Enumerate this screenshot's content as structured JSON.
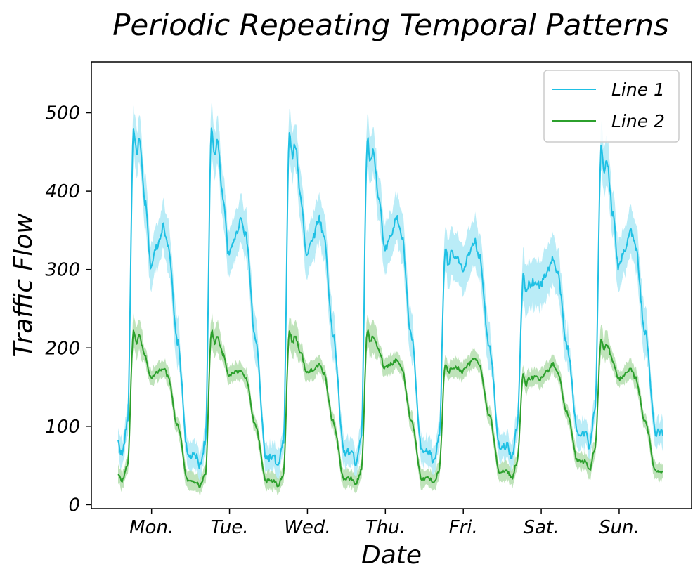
{
  "chart_data": {
    "type": "line",
    "title": "Periodic Repeating Temporal Patterns",
    "xlabel": "Date",
    "ylabel": "Traffic Flow",
    "ylim": [
      -5,
      565
    ],
    "yticks": [
      0,
      100,
      200,
      300,
      400,
      500
    ],
    "categories": [
      "Mon.",
      "Tue.",
      "Wed.",
      "Thu.",
      "Fri.",
      "Sat.",
      "Sun."
    ],
    "grid": false,
    "legend_position": "top-right",
    "series": [
      {
        "name": "Line 1",
        "color": "#1fc0e4",
        "band_color": "#aee9f6",
        "band_width": 22,
        "days": [
          {
            "start": 80,
            "morning_peak": 480,
            "midday_dip": 305,
            "afternoon_peak": 355,
            "night_min": 62
          },
          {
            "start": 62,
            "morning_peak": 480,
            "midday_dip": 318,
            "afternoon_peak": 365,
            "night_min": 60
          },
          {
            "start": 60,
            "morning_peak": 475,
            "midday_dip": 318,
            "afternoon_peak": 365,
            "night_min": 67
          },
          {
            "start": 67,
            "morning_peak": 468,
            "midday_dip": 325,
            "afternoon_peak": 365,
            "night_min": 67
          },
          {
            "start": 67,
            "morning_peak": 330,
            "midday_dip": 300,
            "afternoon_peak": 335,
            "night_min": 75
          },
          {
            "start": 75,
            "morning_peak": 290,
            "midday_dip": 280,
            "afternoon_peak": 313,
            "night_min": 92
          },
          {
            "start": 92,
            "morning_peak": 455,
            "midday_dip": 302,
            "afternoon_peak": 350,
            "night_min": 92
          }
        ]
      },
      {
        "name": "Line 2",
        "color": "#2ca02c",
        "band_color": "#b4deae",
        "band_width": 14,
        "days": [
          {
            "start": 38,
            "morning_peak": 222,
            "midday_dip": 162,
            "afternoon_peak": 175,
            "night_min": 30
          },
          {
            "start": 30,
            "morning_peak": 222,
            "midday_dip": 165,
            "afternoon_peak": 172,
            "night_min": 30
          },
          {
            "start": 30,
            "morning_peak": 222,
            "midday_dip": 168,
            "afternoon_peak": 178,
            "night_min": 33
          },
          {
            "start": 33,
            "morning_peak": 222,
            "midday_dip": 175,
            "afternoon_peak": 185,
            "night_min": 33
          },
          {
            "start": 33,
            "morning_peak": 180,
            "midday_dip": 170,
            "afternoon_peak": 188,
            "night_min": 42
          },
          {
            "start": 42,
            "morning_peak": 165,
            "midday_dip": 160,
            "afternoon_peak": 180,
            "night_min": 55
          },
          {
            "start": 55,
            "morning_peak": 212,
            "midday_dip": 160,
            "afternoon_peak": 172,
            "night_min": 43
          }
        ]
      }
    ]
  }
}
